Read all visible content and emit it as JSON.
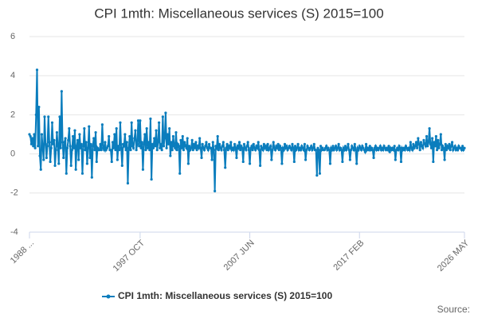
{
  "chart_data": {
    "type": "line",
    "title": "CPI 1mth: Miscellaneous services (S) 2015=100",
    "source": "Source:",
    "categories": [
      "1988 ...",
      null,
      null,
      null,
      null,
      null,
      null,
      null,
      null,
      null,
      null,
      null,
      null,
      null,
      null,
      null,
      null,
      null,
      null,
      null,
      null,
      null,
      null,
      null,
      null,
      null,
      null,
      null,
      null,
      null,
      null,
      null,
      null,
      null,
      null,
      null,
      null,
      null,
      null,
      null,
      null,
      null,
      null,
      null,
      null,
      null,
      null,
      null,
      null,
      null,
      null,
      null,
      null,
      null,
      null,
      null,
      null,
      null,
      null,
      null,
      null,
      null,
      null,
      null,
      null,
      null,
      null,
      null,
      null,
      null,
      null,
      null,
      null,
      null,
      null,
      null,
      null,
      null,
      null,
      null,
      null,
      null,
      null,
      null,
      null,
      null,
      null,
      null,
      null,
      null,
      null,
      null,
      null,
      null,
      null,
      null,
      null,
      null,
      null,
      null,
      null,
      null,
      null,
      null,
      null,
      null,
      null,
      null,
      null,
      null,
      null,
      null,
      null,
      null,
      null,
      null,
      null,
      "1997 OCT",
      null,
      null,
      null,
      null,
      null,
      null,
      null,
      null,
      null,
      null,
      null,
      null,
      null,
      null,
      null,
      null,
      null,
      null,
      null,
      null,
      null,
      null,
      null,
      null,
      null,
      null,
      null,
      null,
      null,
      null,
      null,
      null,
      null,
      null,
      null,
      null,
      null,
      null,
      null,
      null,
      null,
      null,
      null,
      null,
      null,
      null,
      null,
      null,
      null,
      null,
      null,
      null,
      null,
      null,
      null,
      null,
      null,
      null,
      null,
      null,
      null,
      null,
      null,
      null,
      null,
      null,
      null,
      null,
      null,
      null,
      null,
      null,
      null,
      null,
      null,
      null,
      null,
      null,
      null,
      null,
      null,
      null,
      null,
      null,
      null,
      null,
      null,
      null,
      null,
      null,
      null,
      null,
      null,
      null,
      null,
      null,
      null,
      null,
      null,
      null,
      null,
      null,
      null,
      null,
      null,
      null,
      null,
      null,
      null,
      null,
      null,
      null,
      null,
      null,
      null,
      "2007 JUN",
      null,
      null,
      null,
      null,
      null,
      null,
      null,
      null,
      null,
      null,
      null,
      null,
      null,
      null,
      null,
      null,
      null,
      null,
      null,
      null,
      null,
      null,
      null,
      null,
      null,
      null,
      null,
      null,
      null,
      null,
      null,
      null,
      null,
      null,
      null,
      null,
      null,
      null,
      null,
      null,
      null,
      null,
      null,
      null,
      null,
      null,
      null,
      null,
      null,
      null,
      null,
      null,
      null,
      null,
      null,
      null,
      null,
      null,
      null,
      null,
      null,
      null,
      null,
      null,
      null,
      null,
      null,
      null,
      null,
      null,
      null,
      null,
      null,
      null,
      null,
      null,
      null,
      null,
      null,
      null,
      null,
      null,
      null,
      null,
      null,
      null,
      null,
      null,
      null,
      null,
      null,
      null,
      null,
      null,
      null,
      null,
      null,
      null,
      null,
      null,
      null,
      null,
      null,
      null,
      null,
      null,
      null,
      null,
      null,
      null,
      null,
      null,
      null,
      null,
      null,
      "2017 FEB",
      null,
      null,
      null,
      null,
      null,
      null,
      null,
      null,
      null,
      null,
      null,
      null,
      null,
      null,
      null,
      null,
      null,
      null,
      null,
      null,
      null,
      null,
      null,
      null,
      null,
      null,
      null,
      null,
      null,
      null,
      null,
      null,
      null,
      null,
      null,
      null,
      null,
      null,
      null,
      null,
      null,
      null,
      null,
      null,
      null,
      null,
      null,
      null,
      null,
      null,
      null,
      null,
      null,
      null,
      null,
      null,
      null,
      null,
      null,
      null,
      null,
      null,
      null,
      null,
      null,
      null,
      null,
      null,
      null,
      null,
      null,
      null,
      null,
      null,
      null,
      null,
      null,
      null,
      null,
      null,
      null,
      null,
      null,
      null,
      null,
      null,
      null,
      null,
      null,
      null,
      null,
      null,
      null,
      null,
      null,
      null,
      null,
      null,
      null,
      null,
      null,
      null,
      null,
      null,
      null,
      null,
      null,
      null,
      null,
      null,
      "2026 MAY"
    ],
    "series": [
      {
        "name": "CPI 1mth: Miscellaneous services (S) 2015=100",
        "color": "#0a7dbd",
        "values": [
          1.0,
          0.9,
          0.5,
          0.8,
          0.4,
          1.0,
          0.3,
          2.0,
          4.3,
          0.4,
          2.4,
          -0.1,
          -0.8,
          1.0,
          0.3,
          -0.3,
          1.9,
          0.5,
          -0.2,
          0.4,
          1.9,
          0.6,
          -0.4,
          0.3,
          1.6,
          0.5,
          0.7,
          -0.6,
          0.2,
          1.1,
          0.4,
          -0.5,
          1.9,
          0.3,
          3.2,
          0.6,
          -0.2,
          0.6,
          0.8,
          -1.0,
          0.3,
          0.7,
          1.3,
          0.4,
          -0.6,
          0.2,
          0.9,
          0.3,
          1.2,
          -0.8,
          0.4,
          0.7,
          -0.3,
          1.0,
          0.3,
          0.5,
          -1.0,
          0.4,
          1.3,
          0.2,
          0.6,
          -0.5,
          0.3,
          1.4,
          -0.2,
          0.5,
          -1.2,
          0.4,
          0.8,
          0.2,
          1.1,
          -0.4,
          0.3,
          0.2,
          0.2,
          0.5,
          0.2,
          1.5,
          0.3,
          0.2,
          0.6,
          0.2,
          0.3,
          0.4,
          0.9,
          0.2,
          0.2,
          -0.4,
          0.6,
          0.3,
          1.0,
          0.2,
          1.3,
          -0.3,
          0.4,
          0.2,
          1.6,
          0.3,
          -0.6,
          0.5,
          0.4,
          1.0,
          0.2,
          0.6,
          -1.5,
          0.3,
          0.9,
          0.2,
          1.6,
          0.4,
          0.3,
          0.8,
          1.2,
          0.2,
          0.5,
          1.7,
          0.4,
          1.7,
          0.3,
          0.6,
          -0.8,
          0.5,
          1.0,
          0.2,
          1.3,
          0.3,
          0.6,
          0.2,
          1.8,
          -1.3,
          0.5,
          0.3,
          0.8,
          0.4,
          1.2,
          0.2,
          0.6,
          1.6,
          0.3,
          0.5,
          0.2,
          1.9,
          0.4,
          0.8,
          2.1,
          0.3,
          1.0,
          0.5,
          1.3,
          -0.1,
          0.6,
          0.2,
          0.9,
          0.4,
          0.3,
          1.1,
          0.2,
          0.5,
          0.4,
          -1.0,
          0.7,
          0.3,
          0.9,
          0.2,
          0.6,
          0.4,
          0.3,
          0.8,
          -0.5,
          0.4,
          0.2,
          0.3,
          0.7,
          0.2,
          0.5,
          0.3,
          0.6,
          0.2,
          0.4,
          0.3,
          0.8,
          0.3,
          -0.2,
          0.5,
          0.3,
          0.2,
          0.4,
          0.6,
          0.3,
          0.2,
          0.5,
          0.3,
          0.3,
          -0.3,
          0.6,
          0.2,
          -1.9,
          0.4,
          0.3,
          0.9,
          0.2,
          0.5,
          0.3,
          0.2,
          0.4,
          0.6,
          0.2,
          -0.7,
          0.3,
          0.5,
          0.2,
          0.4,
          0.3,
          0.6,
          0.2,
          0.3,
          0.2,
          0.5,
          0.3,
          -0.2,
          0.4,
          0.3,
          0.6,
          0.2,
          0.4,
          0.3,
          -0.4,
          0.5,
          0.3,
          0.2,
          0.4,
          0.6,
          0.2,
          -0.5,
          0.3,
          0.4,
          0.2,
          0.5,
          0.3,
          0.2,
          0.4,
          0.3,
          0.6,
          0.2,
          -0.6,
          0.4,
          0.3,
          0.2,
          0.5,
          0.3,
          0.4,
          0.2,
          0.5,
          0.2,
          0.3,
          0.4,
          -0.3,
          0.2,
          0.6,
          0.3,
          0.2,
          0.4,
          0.3,
          0.5,
          0.2,
          0.4,
          0.3,
          -0.5,
          0.3,
          0.2,
          0.5,
          0.3,
          0.4,
          0.2,
          0.3,
          0.4,
          0.3,
          0.2,
          0.5,
          0.3,
          -0.4,
          0.4,
          0.2,
          0.3,
          0.5,
          0.2,
          0.3,
          0.2,
          0.4,
          0.3,
          0.2,
          0.5,
          -0.3,
          0.2,
          0.4,
          0.3,
          0.2,
          0.3,
          0.4,
          0.2,
          0.3,
          0.5,
          0.2,
          0.2,
          -1.1,
          0.3,
          0.2,
          -1.0,
          0.4,
          0.2,
          0.3,
          0.2,
          0.2,
          0.3,
          0.4,
          0.2,
          0.3,
          0.2,
          -0.5,
          0.3,
          0.2,
          0.4,
          0.2,
          0.3,
          0.4,
          0.2,
          0.3,
          0.5,
          0.2,
          0.3,
          0.2,
          -0.4,
          0.3,
          0.2,
          0.4,
          0.2,
          0.3,
          0.5,
          0.2,
          -0.3,
          0.2,
          0.4,
          0.3,
          0.2,
          0.5,
          0.2,
          -0.5,
          0.3,
          0.2,
          0.4,
          0.3,
          0.2,
          0.4,
          0.3,
          0.2,
          0.1,
          0.5,
          0.2,
          0.3,
          0.2,
          0.4,
          0.2,
          0.3,
          0.2,
          -0.2,
          0.3,
          0.4,
          0.2,
          0.3,
          0.2,
          0.3,
          0.4,
          0.2,
          0.3,
          0.2,
          0.4,
          0.3,
          0.2,
          0.3,
          0.2,
          0.4,
          0.1,
          0.3,
          0.2,
          0.3,
          0.2,
          0.4,
          -0.3,
          0.2,
          0.3,
          0.2,
          0.4,
          0.3,
          -0.4,
          0.3,
          0.2,
          0.3,
          0.2,
          0.4,
          0.3,
          0.2,
          0.3,
          0.2,
          0.6,
          0.3,
          0.2,
          0.5,
          0.3,
          0.4,
          0.6,
          0.3,
          0.8,
          0.5,
          0.2,
          0.6,
          0.4,
          0.3,
          0.7,
          0.5,
          0.4,
          0.9,
          0.4,
          0.6,
          1.3,
          0.5,
          0.3,
          0.8,
          -0.4,
          0.6,
          0.4,
          0.9,
          0.2,
          0.7,
          0.3,
          0.5,
          1.0,
          0.2,
          0.4,
          0.3,
          -0.3,
          0.5,
          0.2,
          0.4,
          0.3,
          0.5,
          0.2,
          0.4,
          0.6,
          0.2,
          0.3,
          0.4,
          0.2,
          0.3,
          0.2,
          0.4,
          0.3,
          0.3,
          0.2,
          0.4,
          0.2,
          0.3
        ]
      }
    ],
    "ylim": [
      -4,
      6
    ],
    "yticks": [
      -4,
      -2,
      0,
      2,
      4,
      6
    ],
    "grid": true
  }
}
